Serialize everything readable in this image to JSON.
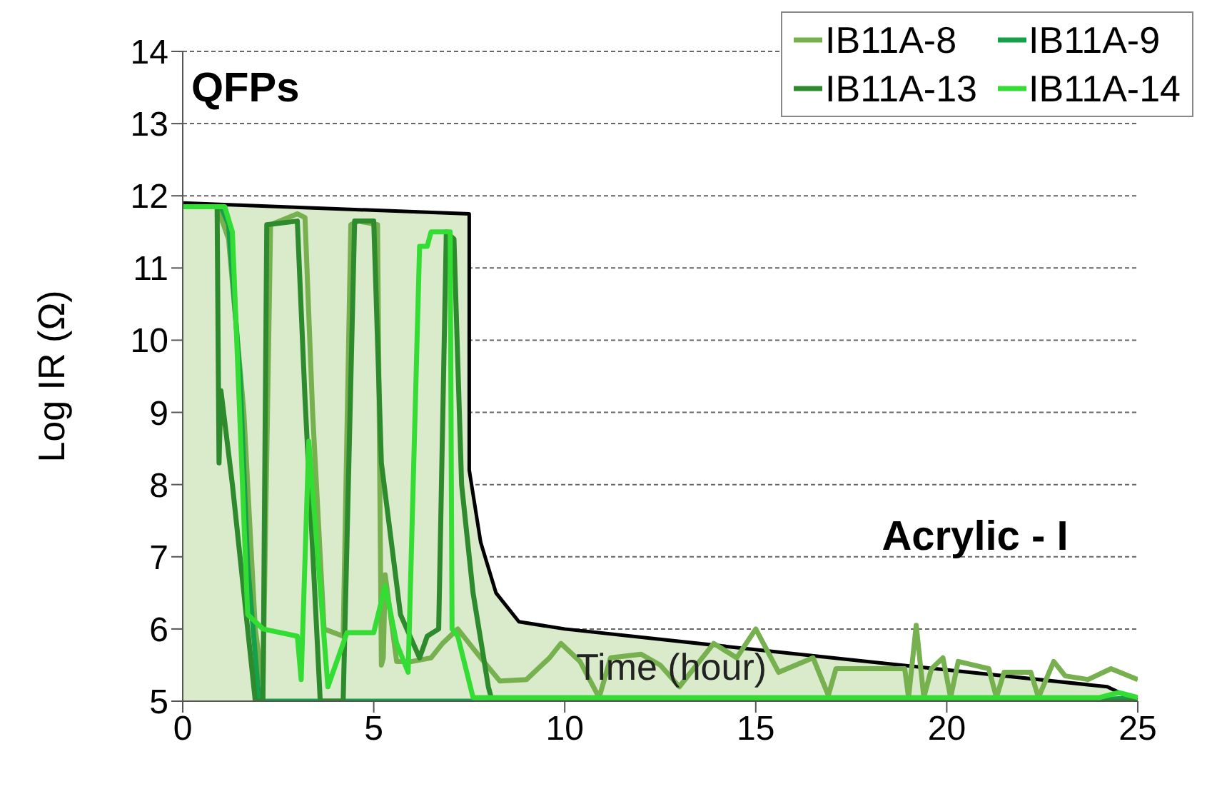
{
  "chart_data": {
    "type": "line",
    "xlabel": "Time (hour)",
    "ylabel": "Log IR (Ω)",
    "annotations": [
      "QFPs",
      "Acrylic - I"
    ],
    "xlim": [
      0,
      25
    ],
    "xticks": [
      0,
      5,
      10,
      15,
      20,
      25
    ],
    "ylim": [
      5,
      14
    ],
    "yticks": [
      5,
      6,
      7,
      8,
      9,
      10,
      11,
      12,
      13,
      14
    ],
    "grid": "y",
    "legend": "top right",
    "marker": "none",
    "line_style": "solid",
    "series": [
      {
        "type": "area",
        "color": "#d9ebcb",
        "x": [
          0,
          7.5,
          7.5,
          7.8,
          8.2,
          8.8,
          10,
          17,
          24.2,
          24.6,
          24.8
        ],
        "values": [
          11.9,
          11.75,
          8.2,
          7.2,
          6.5,
          6.1,
          6.0,
          5.6,
          5.2,
          5.1,
          5.0
        ]
      },
      {
        "name": "IB11A-8",
        "color": "#77b04f",
        "x": [
          0,
          0.9,
          1.2,
          1.6,
          1.9,
          2.1,
          2.3,
          3.0,
          3.2,
          3.4,
          3.7,
          4.2,
          4.4,
          4.6,
          5.1,
          5.2,
          5.25,
          5.3,
          5.6,
          6.0,
          6.5,
          6.8,
          7.2,
          7.8,
          8.3,
          9.0,
          9.6,
          9.9,
          10.4,
          10.9,
          11.2,
          12.0,
          12.5,
          13.0,
          13.9,
          14.5,
          15.0,
          15.6,
          16.5,
          16.9,
          17.1,
          18.9,
          19.0,
          19.2,
          19.4,
          19.6,
          19.9,
          20.1,
          20.3,
          21.1,
          21.3,
          21.5,
          22.2,
          22.4,
          22.8,
          23.1,
          23.7,
          24.3,
          25.0
        ],
        "values": [
          11.85,
          11.85,
          11.4,
          9.0,
          6.0,
          5.2,
          11.6,
          11.75,
          11.7,
          9.0,
          6.0,
          5.9,
          11.6,
          11.65,
          11.6,
          5.5,
          5.6,
          6.75,
          5.55,
          5.55,
          5.6,
          5.8,
          6.0,
          5.6,
          5.28,
          5.3,
          5.6,
          5.8,
          5.55,
          5.05,
          5.6,
          5.65,
          5.5,
          5.2,
          5.8,
          5.6,
          6.0,
          5.4,
          5.6,
          5.08,
          5.45,
          5.45,
          5.05,
          6.05,
          5.05,
          5.45,
          5.6,
          5.05,
          5.55,
          5.45,
          5.05,
          5.4,
          5.4,
          5.05,
          5.55,
          5.35,
          5.3,
          5.45,
          5.3
        ]
      },
      {
        "name": "IB11A-9",
        "color": "#17a04a",
        "x": [
          0,
          1.0,
          1.2,
          1.5,
          1.7,
          2.0,
          5.0,
          8.0,
          12.0,
          16.0,
          20.0,
          24.0,
          25.0
        ],
        "values": [
          11.85,
          11.85,
          11.6,
          9.5,
          6.9,
          5.0,
          5.0,
          5.0,
          5.0,
          5.0,
          5.0,
          5.02,
          5.05
        ]
      },
      {
        "name": "IB11A-13",
        "color": "#2d8a2d",
        "x": [
          0,
          0.9,
          0.95,
          1.0,
          1.3,
          1.9,
          2.1,
          2.2,
          3.0,
          3.2,
          3.6,
          4.2,
          4.5,
          5.0,
          5.2,
          5.7,
          6.2,
          6.4,
          6.7,
          6.9,
          7.1,
          7.3,
          7.6,
          8.0,
          8.1,
          12.0,
          18.0,
          25.0
        ],
        "values": [
          11.85,
          11.85,
          8.3,
          9.3,
          8.0,
          5.0,
          5.0,
          11.6,
          11.65,
          9.2,
          5.0,
          5.0,
          11.65,
          11.65,
          8.3,
          6.2,
          5.6,
          5.9,
          6.0,
          11.5,
          11.4,
          8.0,
          6.5,
          5.2,
          5.0,
          5.0,
          5.0,
          5.0
        ]
      },
      {
        "name": "IB11A-14",
        "color": "#33dd33",
        "x": [
          0,
          1.1,
          1.3,
          1.7,
          2.1,
          3.0,
          3.1,
          3.3,
          3.8,
          4.3,
          5.0,
          5.3,
          5.6,
          5.9,
          6.2,
          6.4,
          6.5,
          7.0,
          7.05,
          7.2,
          7.6,
          9.0,
          12.0,
          15.0,
          18.0,
          21.0,
          24.0,
          24.5,
          25.0
        ],
        "values": [
          11.85,
          11.85,
          11.5,
          6.2,
          6.0,
          5.9,
          5.3,
          8.6,
          5.2,
          5.95,
          5.95,
          6.6,
          5.8,
          5.4,
          11.3,
          11.3,
          11.5,
          11.5,
          6.0,
          5.9,
          5.05,
          5.05,
          5.05,
          5.05,
          5.05,
          5.05,
          5.05,
          5.12,
          5.05
        ]
      }
    ]
  }
}
